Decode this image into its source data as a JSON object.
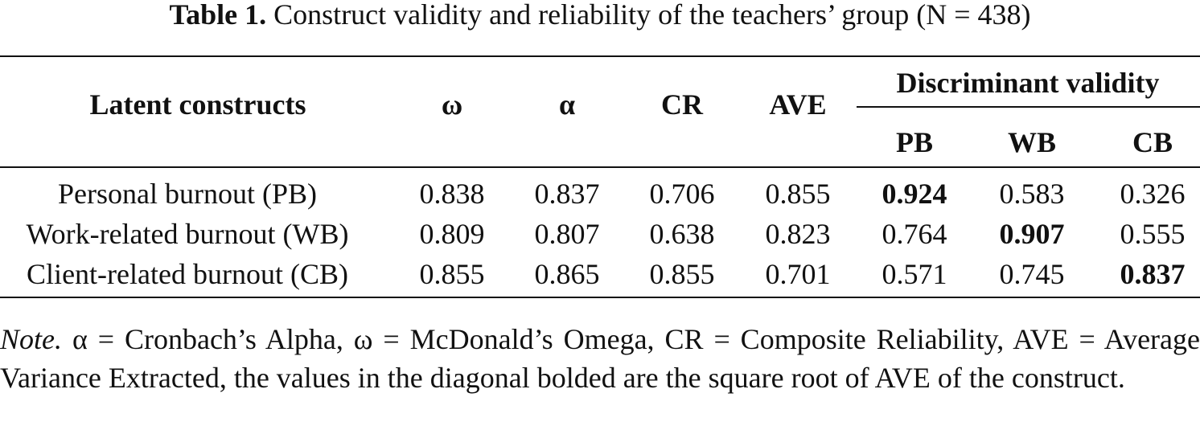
{
  "caption": {
    "label": "Table 1.",
    "title": "Construct validity and reliability of the teachers’ group (N = 438)"
  },
  "table": {
    "header": {
      "construct": "Latent constructs",
      "omega": "ω",
      "alpha": "α",
      "cr": "CR",
      "ave": "AVE",
      "group": "Discriminant validity",
      "sub": [
        "PB",
        "WB",
        "CB"
      ]
    },
    "rows": [
      [
        "Personal burnout (PB)",
        "0.838",
        "0.837",
        "0.706",
        "0.855",
        "0.924",
        "0.583",
        "0.326"
      ],
      [
        "Work-related burnout (WB)",
        "0.809",
        "0.807",
        "0.638",
        "0.823",
        "0.764",
        "0.907",
        "0.555"
      ],
      [
        "Client-related burnout (CB)",
        "0.855",
        "0.865",
        "0.855",
        "0.701",
        "0.571",
        "0.745",
        "0.837"
      ]
    ]
  },
  "note": {
    "label": "Note.",
    "text": "α = Cronbach’s Alpha, ω = McDonald’s Omega, CR = Composite Reliability, AVE = Average Variance Extracted, the values in the diagonal bolded are the square root of AVE of the construct."
  }
}
